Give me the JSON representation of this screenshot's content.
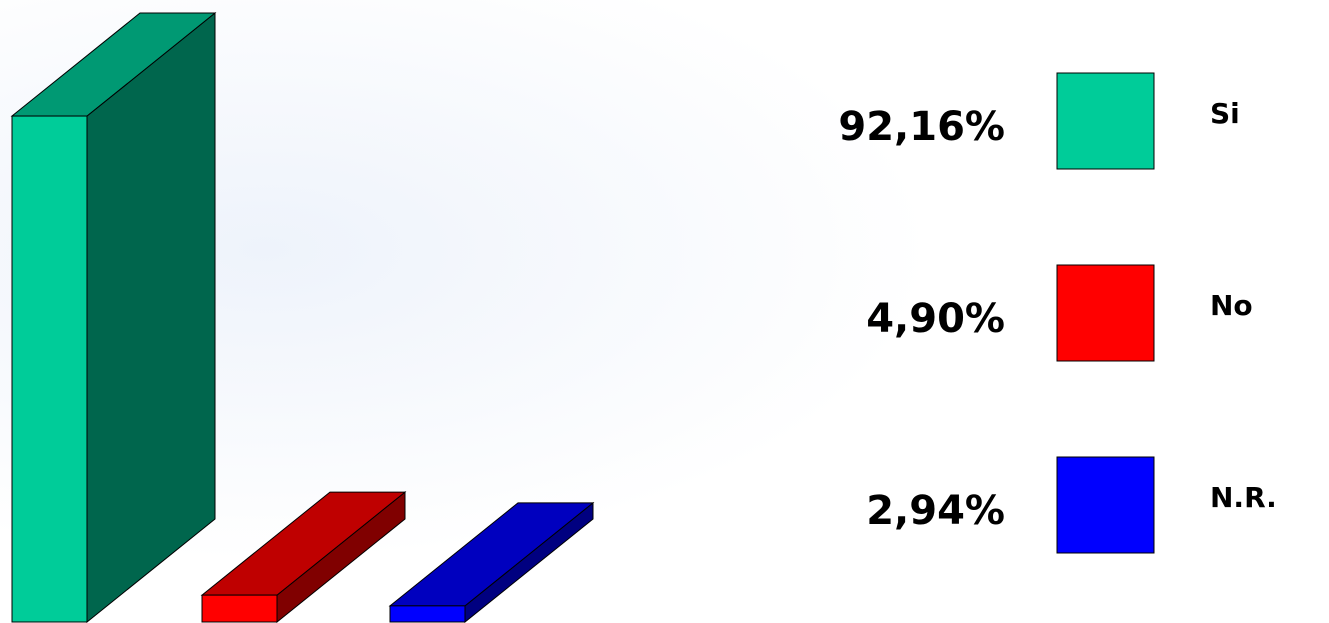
{
  "chart_data": {
    "type": "bar3d",
    "categories": [
      "Si",
      "No",
      "N.R."
    ],
    "values": [
      92.16,
      4.9,
      2.94
    ],
    "value_labels": [
      "92,16%",
      "4,90%",
      "2,94%"
    ],
    "colors": [
      "#00cc99",
      "#ff0000",
      "#0000ff"
    ]
  }
}
